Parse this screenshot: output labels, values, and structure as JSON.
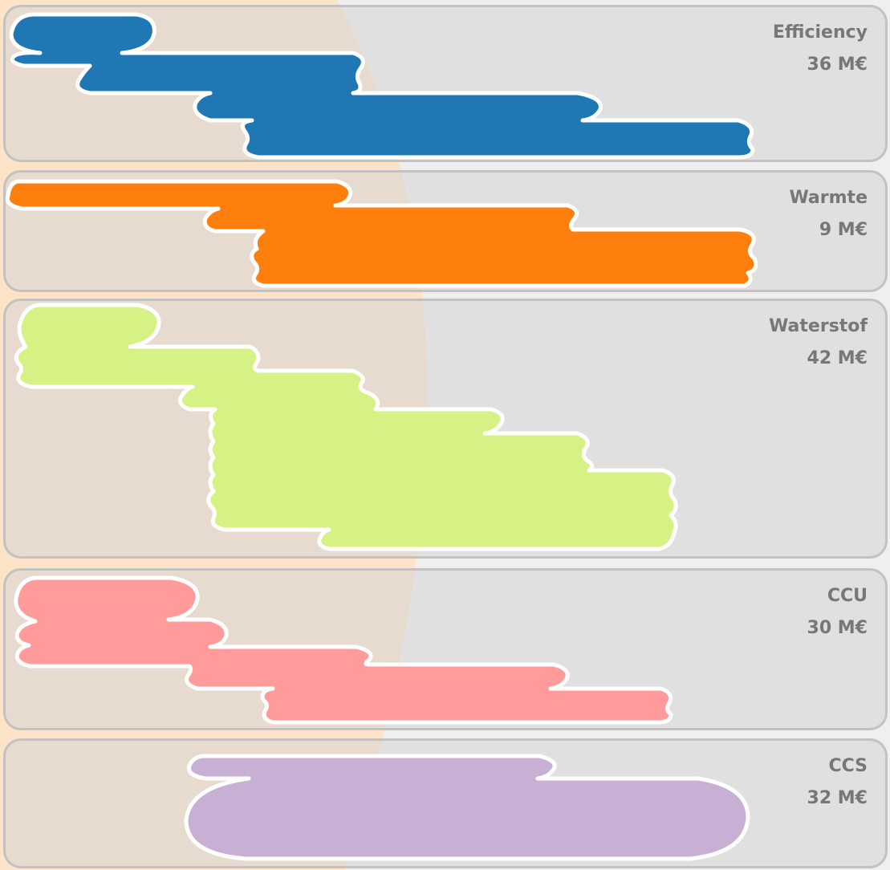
{
  "chart_data": {
    "type": "area",
    "unit": "M€",
    "panels": [
      {
        "name": "Efficiency",
        "value_label": "36 M€",
        "color": "#1f77b4"
      },
      {
        "name": "Warmte",
        "value_label": "9 M€",
        "color": "#ff7f0e"
      },
      {
        "name": "Waterstof",
        "value_label": "42 M€",
        "color": "#d6f285"
      },
      {
        "name": "CCU",
        "value_label": "30 M€",
        "color": "#ff9b9b"
      },
      {
        "name": "CCS",
        "value_label": "32 M€",
        "color": "#c8b0d5"
      }
    ]
  }
}
